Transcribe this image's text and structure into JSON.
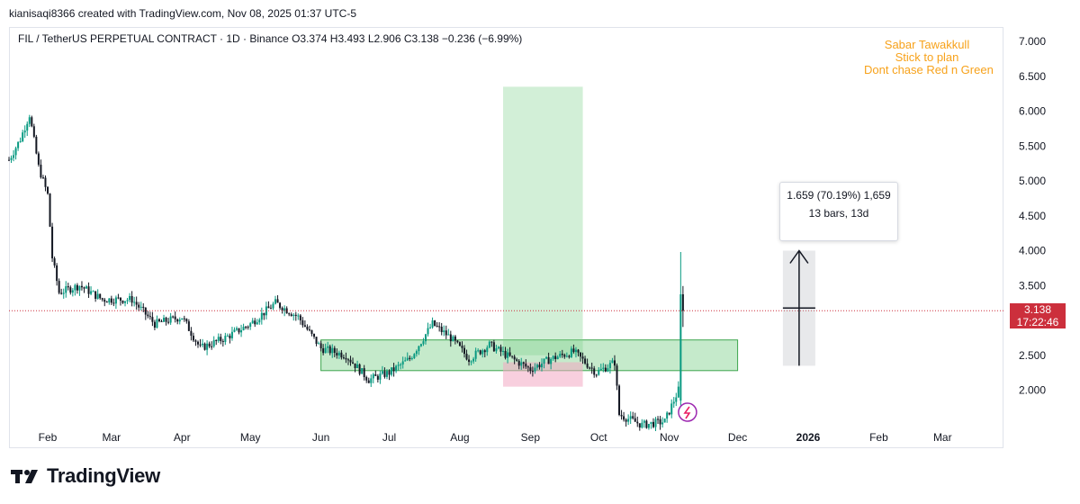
{
  "header": {
    "author_line": "kianisaqi8366 created with TradingView.com, Nov 08, 2025 01:37 UTC-5",
    "symbol_line": "FIL / TetherUS PERPETUAL CONTRACT · 1D · Binance  O3.374  H3.493  L2.906  C3.138  −0.236 (−6.99%)"
  },
  "annotation": {
    "lines": [
      "Sabar Tawakkull",
      "Stick to plan",
      "Dont chase Red n Green"
    ]
  },
  "measure": {
    "line1": "1.659 (70.19%) 1,659",
    "line2": "13 bars, 13d"
  },
  "price_tag": {
    "price": "3.138",
    "countdown": "17:22:46"
  },
  "branding": {
    "logo_text": "TradingView",
    "logo_icon": "tradingview-logo-icon"
  },
  "colors": {
    "up": "#089981",
    "down": "#131722",
    "long_zone": "#7fd08c",
    "short_zone": "#f2a7c3",
    "accent_text": "#f7a21b",
    "price_tag": "#cc2f3c"
  },
  "chart_data": {
    "type": "candlestick",
    "symbol": "FIL / TetherUS PERPETUAL CONTRACT",
    "interval": "1D",
    "exchange": "Binance",
    "ohlc_last": {
      "open": 3.374,
      "high": 3.493,
      "low": 2.906,
      "close": 3.138,
      "change": -0.236,
      "change_pct": -6.99
    },
    "y_axis": {
      "ticks": [
        "7.000",
        "6.500",
        "6.000",
        "5.500",
        "5.000",
        "4.500",
        "4.000",
        "3.500",
        "3.000",
        "2.500",
        "2.000"
      ],
      "ylim": [
        1.55,
        7.2
      ]
    },
    "x_axis": {
      "ticks": [
        "Feb",
        "Mar",
        "Apr",
        "May",
        "Jun",
        "Jul",
        "Aug",
        "Sep",
        "Oct",
        "Nov",
        "Dec",
        "2026",
        "Feb",
        "Mar"
      ]
    },
    "close_path": [
      {
        "date": "2025-01-15",
        "close": 5.3
      },
      {
        "date": "2025-01-20",
        "close": 5.6
      },
      {
        "date": "2025-01-24",
        "close": 5.95
      },
      {
        "date": "2025-01-28",
        "close": 5.2
      },
      {
        "date": "2025-02-01",
        "close": 4.8
      },
      {
        "date": "2025-02-03",
        "close": 3.9
      },
      {
        "date": "2025-02-06",
        "close": 3.4
      },
      {
        "date": "2025-02-15",
        "close": 3.5
      },
      {
        "date": "2025-02-25",
        "close": 3.3
      },
      {
        "date": "2025-03-10",
        "close": 3.3
      },
      {
        "date": "2025-03-20",
        "close": 2.95
      },
      {
        "date": "2025-04-01",
        "close": 3.05
      },
      {
        "date": "2025-04-09",
        "close": 2.6
      },
      {
        "date": "2025-04-20",
        "close": 2.75
      },
      {
        "date": "2025-05-01",
        "close": 2.95
      },
      {
        "date": "2025-05-12",
        "close": 3.25
      },
      {
        "date": "2025-05-22",
        "close": 3.05
      },
      {
        "date": "2025-06-01",
        "close": 2.6
      },
      {
        "date": "2025-06-12",
        "close": 2.5
      },
      {
        "date": "2025-06-22",
        "close": 2.15
      },
      {
        "date": "2025-07-01",
        "close": 2.25
      },
      {
        "date": "2025-07-10",
        "close": 2.45
      },
      {
        "date": "2025-07-20",
        "close": 2.95
      },
      {
        "date": "2025-07-28",
        "close": 2.75
      },
      {
        "date": "2025-08-05",
        "close": 2.45
      },
      {
        "date": "2025-08-14",
        "close": 2.65
      },
      {
        "date": "2025-08-24",
        "close": 2.45
      },
      {
        "date": "2025-09-01",
        "close": 2.3
      },
      {
        "date": "2025-09-10",
        "close": 2.45
      },
      {
        "date": "2025-09-20",
        "close": 2.55
      },
      {
        "date": "2025-09-30",
        "close": 2.25
      },
      {
        "date": "2025-10-08",
        "close": 2.4
      },
      {
        "date": "2025-10-10",
        "close": 1.65
      },
      {
        "date": "2025-10-20",
        "close": 1.5
      },
      {
        "date": "2025-10-30",
        "close": 1.55
      },
      {
        "date": "2025-11-05",
        "close": 2.0
      },
      {
        "date": "2025-11-06",
        "close": 3.374
      },
      {
        "date": "2025-11-07",
        "close": 3.138
      }
    ],
    "current_price": 3.138,
    "zones": [
      {
        "kind": "range-box",
        "from": "2025-06-01",
        "to": "2025-12-01",
        "low": 2.28,
        "high": 2.72
      },
      {
        "kind": "long-profit",
        "from": "2025-08-20",
        "to": "2025-09-24",
        "low": 2.5,
        "high": 6.35
      },
      {
        "kind": "long-stop",
        "from": "2025-08-20",
        "to": "2025-09-24",
        "low": 2.05,
        "high": 2.4
      }
    ],
    "measure_range": {
      "from_price": 2.35,
      "to_price": 4.0,
      "change": "1.659 (70.19%)",
      "bars": 13,
      "days": 13
    }
  }
}
